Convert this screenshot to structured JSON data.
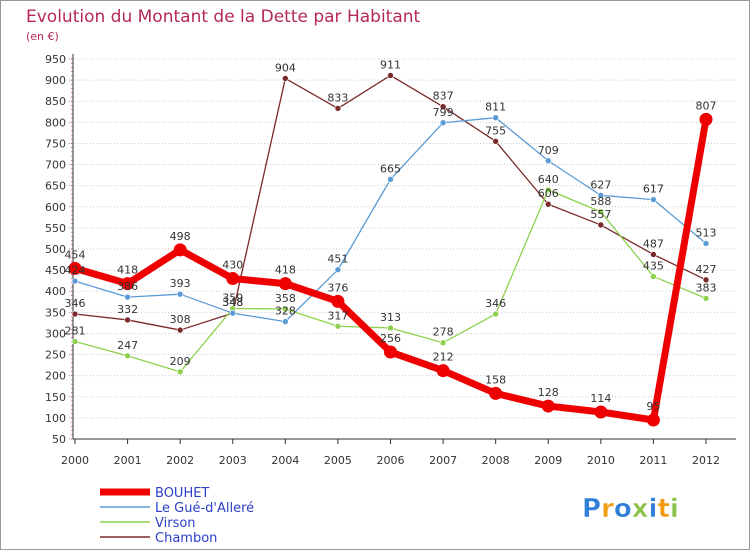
{
  "chart_data": {
    "type": "line",
    "title": "Evolution du Montant de la Dette par Habitant",
    "subtitle": "(en €)",
    "x": [
      "2000",
      "2001",
      "2002",
      "2003",
      "2004",
      "2005",
      "2006",
      "2007",
      "2008",
      "2009",
      "2010",
      "2011",
      "2012"
    ],
    "yticks": [
      50,
      100,
      150,
      200,
      250,
      300,
      350,
      400,
      450,
      500,
      550,
      600,
      650,
      700,
      750,
      800,
      850,
      900,
      950
    ],
    "ylim": [
      50,
      950
    ],
    "grid": "horizontal-dotted",
    "legend_position": "bottom-left",
    "series": [
      {
        "name": "BOUHET",
        "color": "#ee0000",
        "values": [
          454,
          418,
          498,
          430,
          418,
          376,
          256,
          212,
          158,
          128,
          114,
          95,
          807
        ]
      },
      {
        "name": "Le Gué-d'Alleré",
        "color": "#5b9bd5",
        "values": [
          424,
          386,
          393,
          348,
          328,
          451,
          665,
          799,
          811,
          709,
          627,
          617,
          513
        ]
      },
      {
        "name": "Virson",
        "color": "#8fd14f",
        "values": [
          281,
          247,
          209,
          359,
          358,
          317,
          313,
          278,
          346,
          640,
          588,
          435,
          383
        ]
      },
      {
        "name": "Chambon",
        "color": "#7a2a2a",
        "values": [
          346,
          332,
          308,
          348,
          904,
          833,
          911,
          837,
          755,
          606,
          557,
          487,
          427
        ]
      }
    ],
    "watermark": "Proxiti"
  }
}
